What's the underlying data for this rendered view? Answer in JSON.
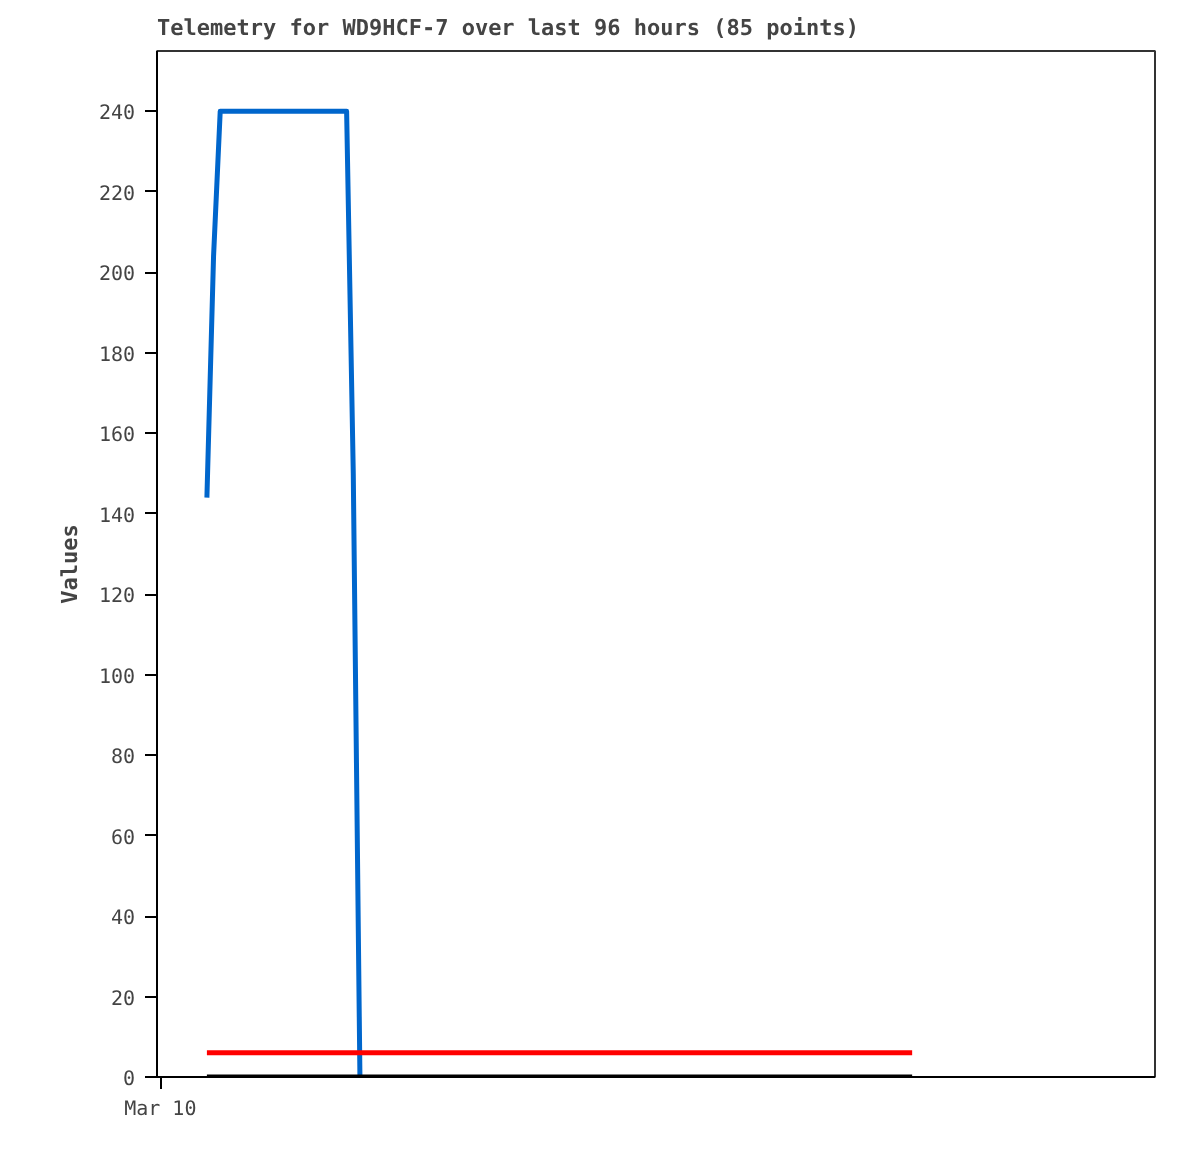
{
  "chart_data": {
    "type": "line",
    "title": "Telemetry for WD9HCF-7 over last 96 hours (85 points)",
    "ylabel": "Values",
    "ylim": [
      0,
      255
    ],
    "yticks": [
      0,
      20,
      40,
      60,
      80,
      100,
      120,
      140,
      160,
      180,
      200,
      220,
      240
    ],
    "grid": false,
    "marker": "none",
    "categories": [
      "Mar 10",
      null,
      null,
      null,
      null,
      null,
      null,
      null,
      null,
      null,
      null,
      null,
      null,
      null,
      null,
      null,
      null,
      null,
      null,
      null,
      null,
      null,
      null,
      null,
      null,
      null,
      null,
      null,
      null,
      null,
      null,
      null,
      null,
      null,
      null,
      null,
      null,
      null,
      null,
      null,
      null,
      null,
      null,
      null,
      null,
      null,
      null,
      null,
      null,
      null,
      null,
      null,
      null,
      null,
      null,
      null,
      null,
      null,
      null,
      null,
      null,
      null,
      null,
      null,
      null,
      null,
      null,
      null,
      null,
      null,
      null,
      null,
      null,
      null,
      null,
      null,
      null,
      null,
      null,
      null,
      null,
      null,
      null,
      null,
      null,
      null,
      null,
      null,
      null,
      null,
      null,
      null,
      null,
      null,
      null,
      null,
      null,
      null,
      null,
      null,
      null,
      null,
      null,
      null,
      null,
      null,
      null,
      null,
      null,
      null,
      null,
      null,
      null,
      null,
      null,
      null,
      null,
      null,
      null,
      null,
      null,
      null,
      null,
      null,
      null,
      null,
      null,
      null,
      null,
      null,
      null,
      null,
      null,
      null,
      null,
      null,
      null,
      null,
      null,
      null,
      null,
      null,
      null,
      null,
      null,
      null,
      null,
      null,
      null,
      null
    ],
    "series": [
      {
        "color": "#0066cc",
        "values": [
          null,
          null,
          null,
          null,
          null,
          null,
          null,
          144,
          204,
          240,
          240,
          240,
          240,
          240,
          240,
          240,
          240,
          240,
          240,
          240,
          240,
          240,
          240,
          240,
          240,
          240,
          240,
          240,
          240,
          150,
          0,
          null,
          null,
          null,
          null,
          null,
          null,
          null,
          null,
          null,
          null,
          null,
          null,
          null,
          null,
          null,
          null,
          null,
          null,
          null,
          null,
          null,
          null,
          null,
          null,
          null,
          null,
          null,
          null,
          null,
          null,
          null,
          null,
          null,
          null,
          null,
          null,
          null,
          null,
          null,
          null,
          null,
          null,
          null,
          null,
          null,
          null,
          null,
          null,
          null,
          null,
          null,
          null,
          null,
          null,
          null,
          null,
          null,
          null,
          null,
          null,
          null,
          null,
          null,
          null,
          null,
          null,
          null,
          null,
          null,
          null,
          null,
          null,
          null,
          null,
          null,
          null,
          null,
          null,
          null,
          null,
          null,
          null,
          null,
          null,
          null,
          null,
          null,
          null,
          null,
          null,
          null,
          null,
          null,
          null,
          null,
          null,
          null,
          null,
          null,
          null,
          null,
          null,
          null,
          null,
          null,
          null,
          null,
          null,
          null,
          null,
          null,
          null,
          null,
          null,
          null,
          null,
          null,
          null,
          null
        ]
      },
      {
        "color": "#ff0000",
        "values": [
          null,
          null,
          null,
          null,
          null,
          null,
          null,
          6,
          6,
          6,
          6,
          6,
          6,
          6,
          6,
          6,
          6,
          6,
          6,
          6,
          6,
          6,
          6,
          6,
          6,
          6,
          6,
          6,
          6,
          6,
          6,
          6,
          6,
          6,
          6,
          6,
          6,
          6,
          6,
          6,
          6,
          6,
          6,
          6,
          6,
          6,
          6,
          6,
          6,
          6,
          6,
          6,
          6,
          6,
          6,
          6,
          6,
          6,
          6,
          6,
          6,
          6,
          6,
          6,
          6,
          6,
          6,
          6,
          6,
          6,
          6,
          6,
          6,
          6,
          6,
          6,
          6,
          6,
          6,
          6,
          6,
          6,
          6,
          6,
          6,
          6,
          6,
          6,
          6,
          6,
          6,
          6,
          6,
          6,
          6,
          6,
          6,
          6,
          6,
          6,
          6,
          6,
          6,
          6,
          6,
          6,
          6,
          6,
          6,
          6,
          6,
          6,
          6,
          6,
          null,
          null,
          null,
          null,
          null,
          null,
          null,
          null,
          null,
          null,
          null,
          null,
          null,
          null,
          null,
          null,
          null,
          null,
          null,
          null,
          null,
          null,
          null,
          null,
          null,
          null,
          null,
          null,
          null,
          null,
          null,
          null,
          null,
          null,
          null,
          null
        ]
      },
      {
        "color": "#000000",
        "values": [
          null,
          null,
          null,
          null,
          null,
          null,
          null,
          0,
          0,
          0,
          0,
          0,
          0,
          0,
          0,
          0,
          0,
          0,
          0,
          0,
          0,
          0,
          0,
          0,
          0,
          0,
          0,
          0,
          0,
          0,
          0,
          0,
          0,
          0,
          0,
          0,
          0,
          0,
          0,
          0,
          0,
          0,
          0,
          0,
          0,
          0,
          0,
          0,
          0,
          0,
          0,
          0,
          0,
          0,
          0,
          0,
          0,
          0,
          0,
          0,
          0,
          0,
          0,
          0,
          0,
          0,
          0,
          0,
          0,
          0,
          0,
          0,
          0,
          0,
          0,
          0,
          0,
          0,
          0,
          0,
          0,
          0,
          0,
          0,
          0,
          0,
          0,
          0,
          0,
          0,
          0,
          0,
          0,
          0,
          0,
          0,
          0,
          0,
          0,
          0,
          0,
          0,
          0,
          0,
          0,
          0,
          0,
          0,
          0,
          0,
          0,
          0,
          0,
          0,
          null,
          null,
          null,
          null,
          null,
          null,
          null,
          null,
          null,
          null,
          null,
          null,
          null,
          null,
          null,
          null,
          null,
          null,
          null,
          null,
          null,
          null,
          null,
          null,
          null,
          null,
          null,
          null,
          null,
          null,
          null,
          null,
          null,
          null,
          null,
          null
        ]
      }
    ]
  }
}
